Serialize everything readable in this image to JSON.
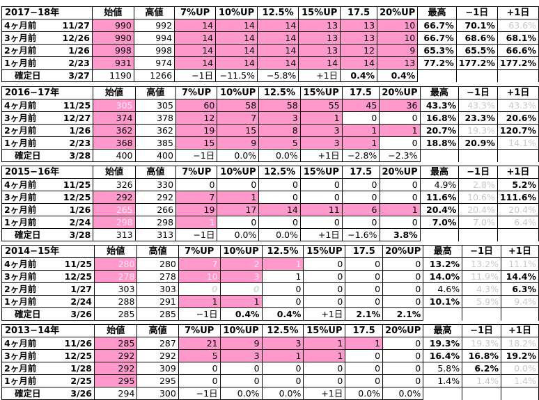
{
  "headers": [
    "始値",
    "高値",
    "7%UP",
    "10%UP",
    "12.5%",
    "15%UP",
    "17.5",
    "20%UP",
    "最高",
    "−1日",
    "+1日"
  ],
  "blocks": [
    {
      "title": "2017−18年",
      "rows": [
        {
          "label": "4ヶ月前",
          "date": "11/27",
          "start": "990",
          "high": "992",
          "c7": "14",
          "c10": "14",
          "c125": "14",
          "c15": "13",
          "c175": "13",
          "c20": "10",
          "max": "66.7%",
          "m1": "70.1%",
          "p1": "63.6%"
        },
        {
          "label": "3ヶ月前",
          "date": "12/26",
          "start": "990",
          "high": "994",
          "c7": "14",
          "c10": "14",
          "c125": "14",
          "c15": "13",
          "c175": "13",
          "c20": "10",
          "max": "66.7%",
          "m1": "68.6%",
          "p1": "68.1%"
        },
        {
          "label": "2ヶ月前",
          "date": "1/26",
          "start": "998",
          "high": "998",
          "c7": "14",
          "c10": "14",
          "c125": "14",
          "c15": "13",
          "c175": "12",
          "c20": "9",
          "max": "65.3%",
          "m1": "65.5%",
          "p1": "66.6%"
        },
        {
          "label": "1ヶ月前",
          "date": "2/23",
          "start": "931",
          "high": "974",
          "c7": "14",
          "c10": "14",
          "c125": "14",
          "c15": "14",
          "c175": "14",
          "c20": "13",
          "max": "77.2%",
          "m1": "177.2%",
          "p1": "177.2%"
        }
      ],
      "confirm": {
        "label": "確定日",
        "date": "3/27",
        "start": "1190",
        "high": "1266",
        "c7": "−1日",
        "c10": "−11.5%",
        "c125": "−5.8%",
        "c15": "+1日",
        "c175": "0.4%",
        "c20": "0.4%"
      }
    },
    {
      "title": "2016−17年",
      "rows": [
        {
          "label": "4ヶ月前",
          "date": "11/25",
          "start": "305",
          "high": "305",
          "c7": "60",
          "c10": "58",
          "c125": "58",
          "c15": "55",
          "c175": "45",
          "c20": "36",
          "max": "43.3%",
          "m1": "43.3%",
          "p1": "43.3%"
        },
        {
          "label": "3ヶ月前",
          "date": "12/27",
          "start": "374",
          "high": "378",
          "c7": "12",
          "c10": "7",
          "c125": "3",
          "c15": "1",
          "c175": "0",
          "c20": "0",
          "max": "16.8%",
          "m1": "23.3%",
          "p1": "20.6%"
        },
        {
          "label": "2ヶ月前",
          "date": "1/26",
          "start": "362",
          "high": "362",
          "c7": "19",
          "c10": "15",
          "c125": "8",
          "c15": "3",
          "c175": "1",
          "c20": "1",
          "max": "20.7%",
          "m1": "19.3%",
          "p1": "120.7%"
        },
        {
          "label": "1ヶ月前",
          "date": "2/23",
          "start": "368",
          "high": "385",
          "c7": "15",
          "c10": "9",
          "c125": "5",
          "c15": "3",
          "c175": "1",
          "c20": "0",
          "max": "18.8%",
          "m1": "20.9%",
          "p1": "14.1%"
        }
      ],
      "confirm": {
        "label": "確定日",
        "date": "3/28",
        "start": "400",
        "high": "400",
        "c7": "−1日",
        "c10": "0.0%",
        "c125": "0.0%",
        "c15": "+1日",
        "c175": "−2.8%",
        "c20": "−2.3%"
      }
    },
    {
      "title": "2015−16年",
      "rows": [
        {
          "label": "4ヶ月前",
          "date": "11/25",
          "start": "326",
          "high": "330",
          "c7": "0",
          "c10": "0",
          "c125": "0",
          "c15": "0",
          "c175": "0",
          "c20": "0",
          "max": "4.9%",
          "m1": "2.8%",
          "p1": "5.2%"
        },
        {
          "label": "3ヶ月前",
          "date": "12/25",
          "start": "292",
          "high": "292",
          "c7": "7",
          "c10": "1",
          "c125": "0",
          "c15": "0",
          "c175": "0",
          "c20": "0",
          "max": "11.6%",
          "m1": "10.6%",
          "p1": "111.6%"
        },
        {
          "label": "2ヶ月前",
          "date": "1/26",
          "start": "265",
          "high": "266",
          "c7": "19",
          "c10": "17",
          "c125": "14",
          "c15": "11",
          "c175": "6",
          "c20": "1",
          "max": "20.4%",
          "m1": "20.4%",
          "p1": "20.4%"
        },
        {
          "label": "1ヶ月前",
          "date": "2/24",
          "start": "298",
          "high": "298",
          "c7": "1",
          "c10": "0",
          "c125": "0",
          "c15": "0",
          "c175": "0",
          "c20": "0",
          "max": "7.0%",
          "m1": "7.0%",
          "p1": "6.4%"
        }
      ],
      "confirm": {
        "label": "確定日",
        "date": "3/28",
        "start": "313",
        "high": "313",
        "c7": "−1日",
        "c10": "0.0%",
        "c125": "0.0%",
        "c15": "+1日",
        "c175": "−1.6%",
        "c20": "3.8%"
      }
    },
    {
      "title": "2014−15年",
      "rows": [
        {
          "label": "4ヶ月前",
          "date": "11/25",
          "start": "280",
          "high": "280",
          "c7": "7",
          "c10": "2",
          "c125": "1",
          "c15": "0",
          "c175": "0",
          "c20": "0",
          "max": "13.2%",
          "m1": "13.2%",
          "p1": "11.1%"
        },
        {
          "label": "3ヶ月前",
          "date": "12/25",
          "start": "278",
          "high": "278",
          "c7": "10",
          "c10": "3",
          "c125": "1",
          "c15": "0",
          "c175": "0",
          "c20": "0",
          "max": "14.0%",
          "m1": "11.9%",
          "p1": "14.4%"
        },
        {
          "label": "2ヶ月前",
          "date": "1/27",
          "start": "303",
          "high": "303",
          "c7": "0",
          "c10": "0",
          "c125": "0",
          "c15": "0",
          "c175": "0",
          "c20": "0",
          "max": "4.6%",
          "m1": "4.3%",
          "p1": "6.3%"
        },
        {
          "label": "1ヶ月前",
          "date": "2/24",
          "start": "288",
          "high": "291",
          "c7": "1",
          "c10": "1",
          "c125": "0",
          "c15": "0",
          "c175": "0",
          "c20": "0",
          "max": "10.1%",
          "m1": "5.9%",
          "p1": "9.4%"
        }
      ],
      "confirm": {
        "label": "確定日",
        "date": "3/26",
        "start": "285",
        "high": "285",
        "c7": "−1日",
        "c10": "0.4%",
        "c125": "0.4%",
        "c15": "+1日",
        "c175": "2.1%",
        "c20": "2.1%"
      }
    },
    {
      "title": "2013−14年",
      "rows": [
        {
          "label": "4ヶ月前",
          "date": "11/26",
          "start": "285",
          "high": "287",
          "c7": "21",
          "c10": "9",
          "c125": "3",
          "c15": "1",
          "c175": "1",
          "c20": "0",
          "max": "19.3%",
          "m1": "19.3%",
          "p1": "18.2%"
        },
        {
          "label": "3ヶ月前",
          "date": "12/25",
          "start": "292",
          "high": "292",
          "c7": "5",
          "c10": "3",
          "c125": "1",
          "c15": "1",
          "c175": "0",
          "c20": "0",
          "max": "16.4%",
          "m1": "16.8%",
          "p1": "19.2%"
        },
        {
          "label": "2ヶ月前",
          "date": "1/28",
          "start": "292",
          "high": "309",
          "c7": "0",
          "c10": "0",
          "c125": "0",
          "c15": "0",
          "c175": "0",
          "c20": "0",
          "max": "5.8%",
          "m1": "6.2%",
          "p1": "0.0%"
        },
        {
          "label": "1ヶ月前",
          "date": "2/25",
          "start": "295",
          "high": "295",
          "c7": "0",
          "c10": "0",
          "c125": "0",
          "c15": "0",
          "c175": "0",
          "c20": "0",
          "max": "1.4%",
          "m1": "1.4%",
          "p1": "1.4%"
        }
      ],
      "confirm": {
        "label": "確定日",
        "date": "3/26",
        "start": "294",
        "high": "300",
        "c7": "−1日",
        "c10": "0.0%",
        "c125": "0.0%",
        "c15": "+1日",
        "c175": "0.0%",
        "c20": "0.0%"
      }
    }
  ],
  "colors": {
    "highlight": "#ff99cc",
    "faint_text": "#c8c8c8",
    "grid_line": "#000000",
    "background": "#ffffff"
  }
}
